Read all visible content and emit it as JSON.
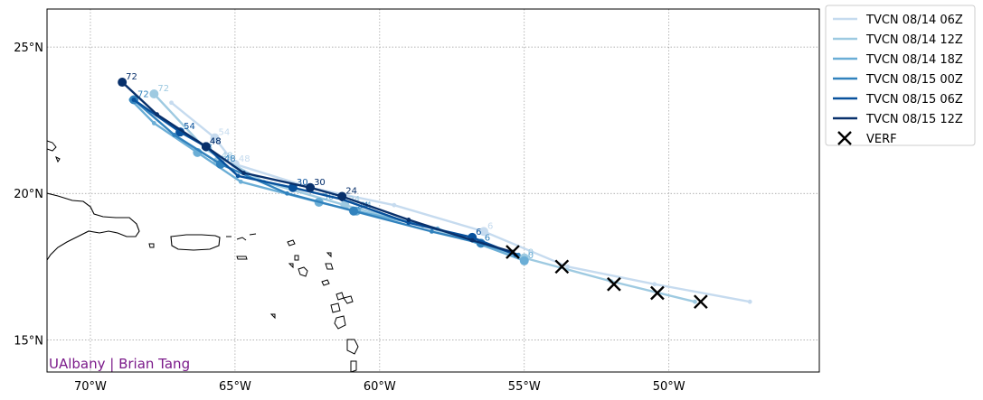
{
  "chart_data": {
    "type": "line",
    "title": "",
    "xlabel": "",
    "ylabel": "",
    "xlim": [
      -71.5,
      -44.8
    ],
    "ylim": [
      13.9,
      26.3
    ],
    "grid": true,
    "legend_position": "outside-top-right",
    "x_ticks": [
      {
        "value": -70,
        "label": "70°W"
      },
      {
        "value": -65,
        "label": "65°W"
      },
      {
        "value": -60,
        "label": "60°W"
      },
      {
        "value": -55,
        "label": "55°W"
      },
      {
        "value": -50,
        "label": "50°W"
      }
    ],
    "y_ticks": [
      {
        "value": 15,
        "label": "15°N"
      },
      {
        "value": 20,
        "label": "20°N"
      },
      {
        "value": 25,
        "label": "25°N"
      }
    ],
    "series": [
      {
        "name": "TVCN 08/14 06Z",
        "color": "#c6dbef",
        "track": [
          [
            -47.2,
            16.3
          ],
          [
            -50.5,
            16.9
          ],
          [
            -53.5,
            17.5
          ],
          [
            -56.4,
            18.7
          ],
          [
            -59.5,
            19.6
          ],
          [
            -62.4,
            20.2
          ],
          [
            -65.0,
            21.0
          ],
          [
            -65.7,
            21.9
          ],
          [
            -67.2,
            23.1
          ]
        ],
        "markers": [
          {
            "lon": -56.4,
            "lat": 18.7,
            "label": "6"
          },
          {
            "lon": -62.4,
            "lat": 20.2,
            "label": "30"
          },
          {
            "lon": -65.0,
            "lat": 21.0,
            "label": "48"
          },
          {
            "lon": -65.7,
            "lat": 21.9,
            "label": "54"
          }
        ]
      },
      {
        "name": "TVCN 08/14 12Z",
        "color": "#9ecae1",
        "track": [
          [
            -49.1,
            16.3
          ],
          [
            -52.0,
            17.0
          ],
          [
            -55.0,
            17.8
          ],
          [
            -58.5,
            18.9
          ],
          [
            -61.2,
            19.6
          ],
          [
            -64.0,
            20.4
          ],
          [
            -66.0,
            21.5
          ],
          [
            -67.8,
            23.4
          ]
        ],
        "markers": [
          {
            "lon": -55.0,
            "lat": 17.8,
            "label": "0"
          },
          {
            "lon": -61.2,
            "lat": 19.6,
            "label": "24"
          },
          {
            "lon": -65.6,
            "lat": 21.1,
            "label": "48"
          },
          {
            "lon": -67.8,
            "lat": 23.4,
            "label": "72"
          }
        ]
      },
      {
        "name": "TVCN 08/14 18Z",
        "color": "#6baed6",
        "track": [
          [
            -55.0,
            17.7
          ],
          [
            -58.0,
            18.8
          ],
          [
            -60.8,
            19.4
          ],
          [
            -62.1,
            19.7
          ],
          [
            -64.8,
            20.4
          ],
          [
            -66.3,
            21.4
          ],
          [
            -67.8,
            22.4
          ],
          [
            -68.6,
            23.2
          ]
        ],
        "markers": [
          {
            "lon": -55.0,
            "lat": 17.7,
            "label": "0"
          },
          {
            "lon": -60.8,
            "lat": 19.4,
            "label": "24"
          },
          {
            "lon": -62.1,
            "lat": 19.7,
            "label": "30"
          },
          {
            "lon": -66.3,
            "lat": 21.4,
            "label": "48"
          }
        ]
      },
      {
        "name": "TVCN 08/15 00Z",
        "color": "#3182bd",
        "track": [
          [
            -55.2,
            17.9
          ],
          [
            -56.5,
            18.3
          ],
          [
            -58.2,
            18.7
          ],
          [
            -60.9,
            19.4
          ],
          [
            -63.2,
            20.0
          ],
          [
            -65.5,
            21.0
          ],
          [
            -67.1,
            22.0
          ],
          [
            -68.5,
            23.2
          ]
        ],
        "markers": [
          {
            "lon": -56.5,
            "lat": 18.3,
            "label": "6"
          },
          {
            "lon": -60.9,
            "lat": 19.4,
            "label": "24"
          },
          {
            "lon": -65.5,
            "lat": 21.0,
            "label": "48"
          },
          {
            "lon": -68.5,
            "lat": 23.2,
            "label": "72"
          }
        ]
      },
      {
        "name": "TVCN 08/15 06Z",
        "color": "#08519c",
        "track": [
          [
            -55.3,
            17.9
          ],
          [
            -56.8,
            18.5
          ],
          [
            -59.0,
            19.0
          ],
          [
            -61.3,
            19.8
          ],
          [
            -63.0,
            20.2
          ],
          [
            -64.9,
            20.6
          ],
          [
            -66.0,
            21.6
          ],
          [
            -66.9,
            22.1
          ],
          [
            -68.5,
            23.2
          ]
        ],
        "markers": [
          {
            "lon": -56.8,
            "lat": 18.5,
            "label": "6"
          },
          {
            "lon": -63.0,
            "lat": 20.2,
            "label": "30"
          },
          {
            "lon": -66.0,
            "lat": 21.6,
            "label": "48"
          },
          {
            "lon": -66.9,
            "lat": 22.1,
            "label": "54"
          }
        ]
      },
      {
        "name": "TVCN 08/15 12Z",
        "color": "#08306b",
        "track": [
          [
            -55.4,
            18.0
          ],
          [
            -56.8,
            18.4
          ],
          [
            -59.0,
            19.1
          ],
          [
            -61.3,
            19.9
          ],
          [
            -62.4,
            20.2
          ],
          [
            -64.7,
            20.7
          ],
          [
            -66.0,
            21.6
          ],
          [
            -67.7,
            22.7
          ],
          [
            -68.9,
            23.8
          ]
        ],
        "markers": [
          {
            "lon": -61.3,
            "lat": 19.9,
            "label": "24"
          },
          {
            "lon": -62.4,
            "lat": 20.2,
            "label": "30"
          },
          {
            "lon": -66.0,
            "lat": 21.6,
            "label": "48"
          },
          {
            "lon": -68.9,
            "lat": 23.8,
            "label": "72"
          }
        ]
      }
    ],
    "verification": {
      "name": "VERF",
      "points": [
        [
          -48.9,
          16.3
        ],
        [
          -50.4,
          16.6
        ],
        [
          -51.9,
          16.9
        ],
        [
          -53.7,
          17.5
        ],
        [
          -55.4,
          18.0
        ]
      ]
    },
    "credit": "UAlbany | Brian Tang",
    "credit_color": "#7b1a8a"
  }
}
